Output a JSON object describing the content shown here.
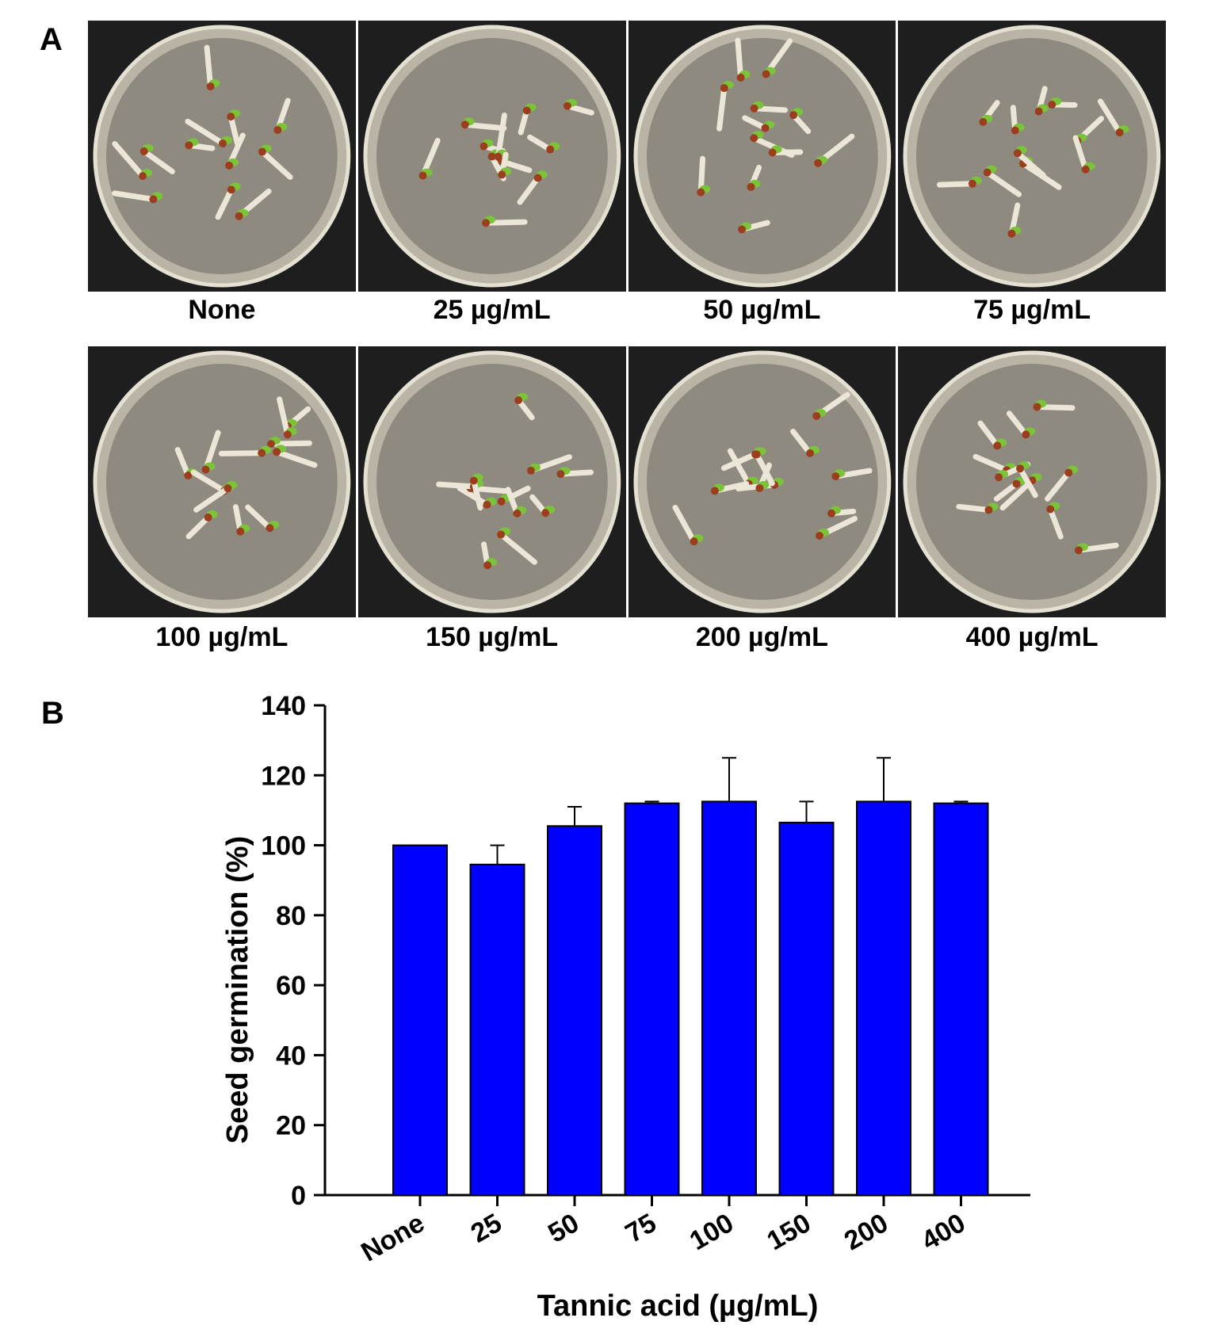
{
  "figure": {
    "panel_a_letter": "A",
    "panel_b_letter": "B",
    "plates": [
      {
        "caption": "None"
      },
      {
        "caption": "25 µg/mL"
      },
      {
        "caption": "50 µg/mL"
      },
      {
        "caption": "75 µg/mL"
      },
      {
        "caption": "100 µg/mL"
      },
      {
        "caption": "150 µg/mL"
      },
      {
        "caption": "200 µg/mL"
      },
      {
        "caption": "400 µg/mL"
      }
    ]
  },
  "chart_data": {
    "type": "bar",
    "categories": [
      "None",
      "25",
      "50",
      "75",
      "100",
      "150",
      "200",
      "400"
    ],
    "values": [
      100,
      94.5,
      105.5,
      112,
      112.5,
      106.5,
      112.5,
      112
    ],
    "errors": [
      0,
      5.5,
      5.5,
      0.5,
      12.5,
      6,
      12.5,
      0.5
    ],
    "xlabel": "Tannic acid (µg/mL)",
    "ylabel": "Seed germination (%)",
    "ylim": [
      0,
      140
    ],
    "yticks": [
      0,
      20,
      40,
      60,
      80,
      100,
      120,
      140
    ],
    "bar_color": "#0000ff",
    "grid": false
  }
}
